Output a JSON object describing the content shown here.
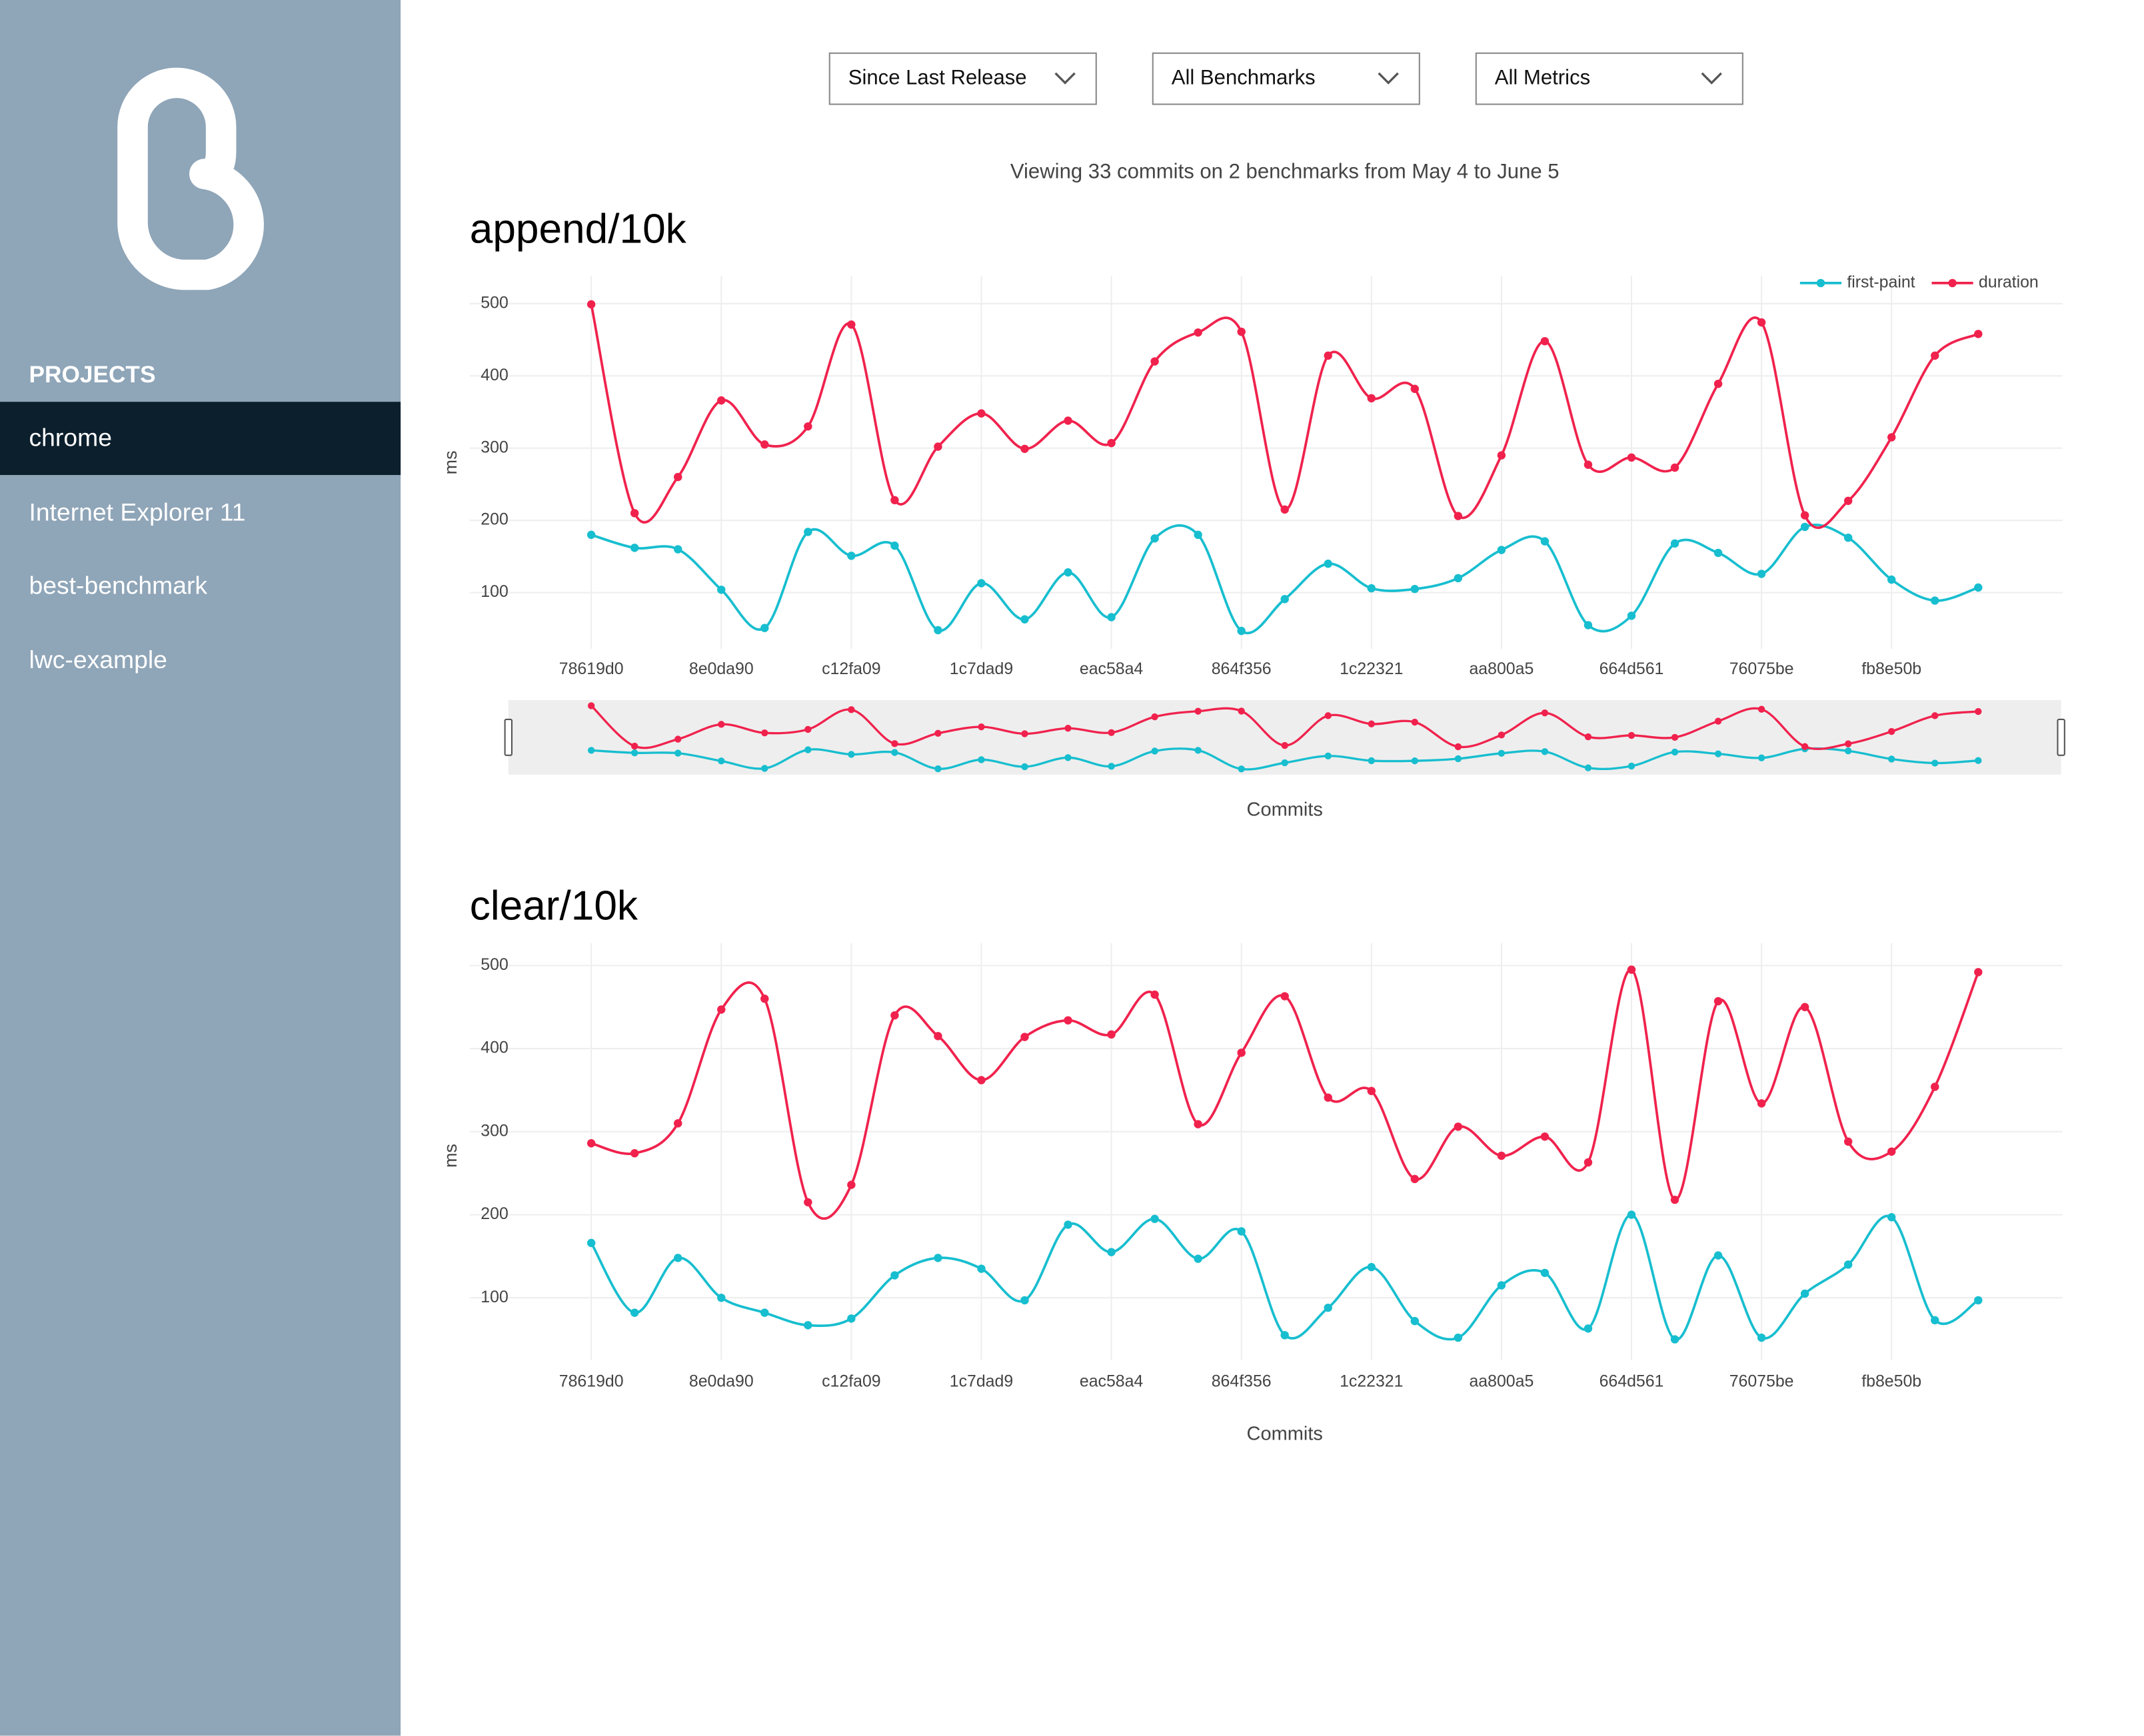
{
  "sidebar": {
    "section": "PROJECTS",
    "projects": [
      "chrome",
      "Internet Explorer 11",
      "best-benchmark",
      "lwc-example"
    ],
    "selected_index": 0
  },
  "filters": [
    "Since Last Release",
    "All Benchmarks",
    "All Metrics"
  ],
  "summary": "Viewing 33 commits on 2 benchmarks from May 4 to June 5",
  "chart_data": [
    {
      "type": "line",
      "title": "append/10k",
      "y_label": "ms",
      "x_label": "Commits",
      "categories": [
        "78619d0",
        null,
        null,
        "8e0da90",
        null,
        null,
        "c12fa09",
        null,
        null,
        "1c7dad9",
        null,
        null,
        "eac58a4",
        null,
        null,
        "864f356",
        null,
        null,
        "1c22321",
        null,
        null,
        "aa800a5",
        null,
        null,
        "664d561",
        null,
        null,
        "76075be",
        null,
        null,
        "fb8e50b",
        null,
        null
      ],
      "series": [
        {
          "name": "first-paint",
          "color": "#17becf",
          "values": [
            180,
            162,
            160,
            104,
            51,
            184,
            151,
            165,
            48,
            113,
            63,
            128,
            66,
            175,
            180,
            47,
            91,
            140,
            106,
            105,
            120,
            159,
            171,
            55,
            68,
            168,
            155,
            126,
            191,
            176,
            118,
            89,
            107
          ]
        },
        {
          "name": "duration",
          "color": "#f0224d",
          "values": [
            499,
            210,
            260,
            366,
            305,
            330,
            471,
            228,
            302,
            348,
            299,
            338,
            307,
            420,
            460,
            461,
            215,
            428,
            369,
            382,
            206,
            290,
            448,
            277,
            287,
            273,
            389,
            474,
            207,
            227,
            315,
            428,
            458
          ]
        }
      ],
      "ylim": [
        22,
        538
      ],
      "yticks": [
        100,
        200,
        300,
        400,
        500
      ],
      "grid": true,
      "legend": "top-right",
      "range_slider": true
    },
    {
      "type": "line",
      "title": "clear/10k",
      "y_label": "ms",
      "x_label": "Commits",
      "categories": [
        "78619d0",
        null,
        null,
        "8e0da90",
        null,
        null,
        "c12fa09",
        null,
        null,
        "1c7dad9",
        null,
        null,
        "eac58a4",
        null,
        null,
        "864f356",
        null,
        null,
        "1c22321",
        null,
        null,
        "aa800a5",
        null,
        null,
        "664d561",
        null,
        null,
        "76075be",
        null,
        null,
        "fb8e50b",
        null,
        null
      ],
      "series": [
        {
          "color": "#17becf",
          "values": [
            166,
            82,
            148,
            100,
            82,
            67,
            75,
            127,
            148,
            135,
            97,
            188,
            155,
            195,
            147,
            180,
            55,
            88,
            137,
            72,
            52,
            115,
            130,
            63,
            200,
            50,
            151,
            52,
            105,
            140,
            197,
            73,
            97
          ]
        },
        {
          "color": "#f0224d",
          "values": [
            286,
            274,
            310,
            447,
            460,
            215,
            236,
            440,
            415,
            362,
            414,
            434,
            417,
            465,
            309,
            395,
            463,
            341,
            349,
            243,
            306,
            271,
            294,
            263,
            495,
            218,
            457,
            334,
            450,
            288,
            276,
            354,
            492
          ]
        }
      ],
      "ylim": [
        25,
        527
      ],
      "yticks": [
        100,
        200,
        300,
        400,
        500
      ],
      "grid": true,
      "range_slider": false
    }
  ]
}
